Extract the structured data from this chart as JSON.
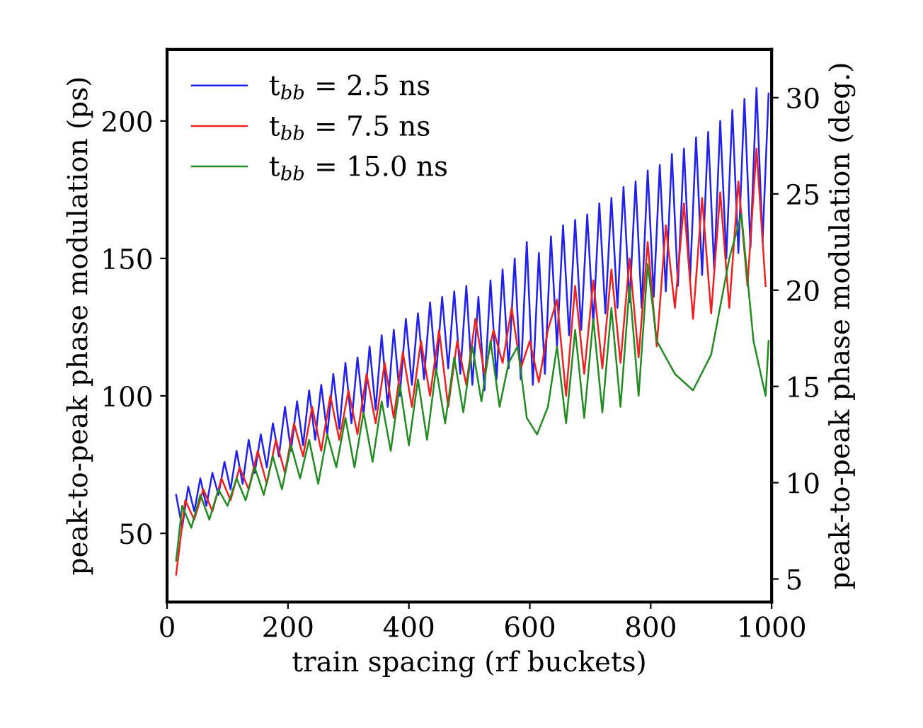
{
  "chart_data": {
    "type": "line",
    "xlabel": "train spacing (rf buckets)",
    "ylabel": "peak-to-peak phase modulation (ps)",
    "y2label": "peak-to-peak phase modulation (deg.)",
    "xlim": [
      0,
      1000
    ],
    "xticks": [
      0,
      200,
      400,
      600,
      800,
      1000
    ],
    "ylim": [
      25,
      226
    ],
    "yticks": [
      50,
      100,
      150,
      200
    ],
    "y2lim": [
      3.8,
      32.5
    ],
    "y2ticks": [
      5,
      10,
      15,
      20,
      25,
      30
    ],
    "grid": false,
    "legend": "top left",
    "marker": "none",
    "line_style": "solid",
    "series": [
      {
        "name": "t$_{bb}$ = 2.5 ns",
        "color": "#2020f0",
        "x": [
          15,
          25,
          35,
          45,
          55,
          65,
          75,
          85,
          95,
          105,
          115,
          125,
          135,
          145,
          155,
          165,
          175,
          185,
          195,
          205,
          215,
          225,
          235,
          245,
          255,
          265,
          275,
          285,
          295,
          305,
          315,
          325,
          335,
          345,
          355,
          365,
          375,
          385,
          395,
          405,
          415,
          425,
          435,
          445,
          455,
          465,
          475,
          485,
          495,
          505,
          515,
          525,
          535,
          545,
          555,
          565,
          575,
          585,
          595,
          605,
          615,
          625,
          635,
          645,
          655,
          665,
          675,
          685,
          695,
          705,
          715,
          725,
          735,
          745,
          755,
          765,
          775,
          785,
          795,
          805,
          815,
          825,
          835,
          845,
          855,
          865,
          875,
          885,
          895,
          905,
          915,
          925,
          935,
          945,
          955,
          965,
          975,
          985,
          995
        ],
        "values": [
          64,
          52,
          67,
          58,
          70,
          60,
          72,
          64,
          76,
          66,
          80,
          68,
          84,
          72,
          86,
          74,
          90,
          78,
          96,
          80,
          98,
          82,
          102,
          84,
          104,
          86,
          108,
          88,
          112,
          90,
          114,
          93,
          118,
          95,
          122,
          96,
          124,
          100,
          128,
          104,
          130,
          106,
          134,
          108,
          136,
          110,
          138,
          108,
          140,
          104,
          136,
          102,
          142,
          106,
          146,
          110,
          150,
          106,
          156,
          104,
          152,
          108,
          158,
          118,
          162,
          122,
          164,
          124,
          166,
          126,
          170,
          130,
          172,
          132,
          176,
          134,
          178,
          132,
          182,
          136,
          184,
          138,
          188,
          140,
          190,
          142,
          194,
          144,
          196,
          146,
          200,
          150,
          204,
          152,
          208,
          154,
          212,
          156,
          210
        ]
      },
      {
        "name": "t$_{bb}$ = 7.5 ns",
        "color": "#f02020",
        "x": [
          15,
          30,
          45,
          60,
          75,
          90,
          105,
          120,
          135,
          150,
          165,
          180,
          195,
          210,
          225,
          240,
          255,
          270,
          285,
          300,
          315,
          330,
          345,
          360,
          375,
          390,
          405,
          420,
          435,
          450,
          465,
          480,
          495,
          510,
          525,
          540,
          555,
          570,
          585,
          600,
          615,
          630,
          645,
          660,
          675,
          690,
          705,
          720,
          735,
          750,
          765,
          780,
          795,
          810,
          825,
          840,
          855,
          870,
          885,
          900,
          915,
          930,
          945,
          960,
          975,
          990
        ],
        "values": [
          35,
          62,
          55,
          66,
          58,
          70,
          62,
          74,
          66,
          80,
          68,
          84,
          72,
          90,
          78,
          96,
          80,
          100,
          84,
          102,
          86,
          108,
          90,
          112,
          92,
          116,
          96,
          120,
          100,
          124,
          96,
          120,
          104,
          128,
          108,
          124,
          112,
          132,
          110,
          120,
          105,
          124,
          135,
          100,
          140,
          108,
          142,
          110,
          146,
          112,
          150,
          114,
          156,
          118,
          162,
          132,
          170,
          128,
          172,
          130,
          174,
          132,
          178,
          140,
          190,
          140
        ]
      },
      {
        "name": "t$_{bb}$ = 15.0 ns",
        "color": "#228b22",
        "x": [
          15,
          25,
          40,
          55,
          70,
          85,
          100,
          115,
          130,
          145,
          160,
          175,
          190,
          205,
          220,
          235,
          250,
          265,
          280,
          295,
          310,
          325,
          340,
          355,
          370,
          385,
          400,
          415,
          430,
          445,
          460,
          475,
          490,
          505,
          520,
          535,
          550,
          565,
          580,
          595,
          612,
          630,
          645,
          660,
          675,
          690,
          705,
          720,
          735,
          750,
          765,
          780,
          795,
          810,
          840,
          870,
          900,
          930,
          950,
          970,
          990,
          995
        ],
        "values": [
          40,
          60,
          52,
          64,
          55,
          66,
          60,
          70,
          62,
          74,
          64,
          78,
          66,
          82,
          70,
          84,
          68,
          86,
          74,
          92,
          74,
          94,
          76,
          98,
          80,
          104,
          82,
          106,
          84,
          110,
          90,
          114,
          94,
          118,
          98,
          120,
          96,
          112,
          118,
          92,
          86,
          96,
          118,
          90,
          124,
          92,
          128,
          94,
          132,
          96,
          140,
          100,
          148,
          120,
          108,
          102,
          115,
          150,
          166,
          120,
          100,
          120
        ]
      }
    ]
  }
}
